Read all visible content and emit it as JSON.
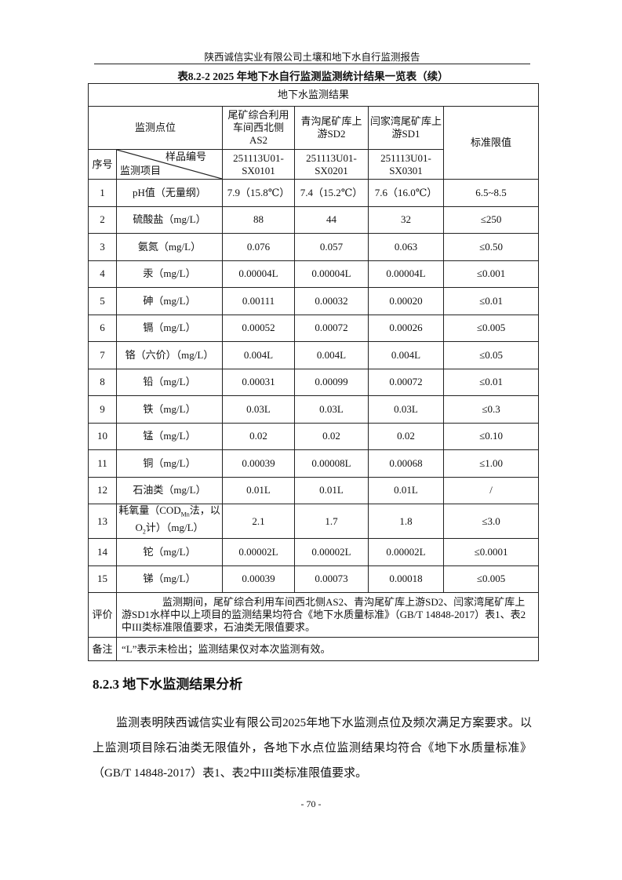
{
  "header": {
    "title": "陕西诚信实业有限公司土壤和地下水自行监测报告"
  },
  "caption": "表8.2-2    2025 年地下水自行监测监测统计结果一览表（续）",
  "table": {
    "section_title": "地下水监测结果",
    "point_label": "监测点位",
    "stations": [
      "尾矿综合利用车间西北侧AS2",
      "青沟尾矿库上游SD2",
      "闫家湾尾矿库上游SD1"
    ],
    "standard_label": "标准限值",
    "seq_label": "序号",
    "sample_label": "样品编号",
    "item_label": "监测项目",
    "sample_ids": [
      "251113U01-SX0101",
      "251113U01-SX0201",
      "251113U01-SX0301"
    ],
    "rows": [
      {
        "no": "1",
        "item": "pH值（无量纲）",
        "v": [
          "7.9（15.8℃）",
          "7.4（15.2℃）",
          "7.6（16.0℃）"
        ],
        "std": "6.5~8.5"
      },
      {
        "no": "2",
        "item": "硫酸盐（mg/L）",
        "v": [
          "88",
          "44",
          "32"
        ],
        "std": "≤250"
      },
      {
        "no": "3",
        "item": "氨氮（mg/L）",
        "v": [
          "0.076",
          "0.057",
          "0.063"
        ],
        "std": "≤0.50"
      },
      {
        "no": "4",
        "item": "汞（mg/L）",
        "v": [
          "0.00004L",
          "0.00004L",
          "0.00004L"
        ],
        "std": "≤0.001"
      },
      {
        "no": "5",
        "item": "砷（mg/L）",
        "v": [
          "0.00111",
          "0.00032",
          "0.00020"
        ],
        "std": "≤0.01"
      },
      {
        "no": "6",
        "item": "镉（mg/L）",
        "v": [
          "0.00052",
          "0.00072",
          "0.00026"
        ],
        "std": "≤0.005"
      },
      {
        "no": "7",
        "item": "铬（六价）（mg/L）",
        "v": [
          "0.004L",
          "0.004L",
          "0.004L"
        ],
        "std": "≤0.05"
      },
      {
        "no": "8",
        "item": "铅（mg/L）",
        "v": [
          "0.00031",
          "0.00099",
          "0.00072"
        ],
        "std": "≤0.01"
      },
      {
        "no": "9",
        "item": "铁（mg/L）",
        "v": [
          "0.03L",
          "0.03L",
          "0.03L"
        ],
        "std": "≤0.3"
      },
      {
        "no": "10",
        "item": "锰（mg/L）",
        "v": [
          "0.02",
          "0.02",
          "0.02"
        ],
        "std": "≤0.10"
      },
      {
        "no": "11",
        "item": "铜（mg/L）",
        "v": [
          "0.00039",
          "0.00008L",
          "0.00068"
        ],
        "std": "≤1.00"
      },
      {
        "no": "12",
        "item": "石油类（mg/L）",
        "v": [
          "0.01L",
          "0.01L",
          "0.01L"
        ],
        "std": "/"
      },
      {
        "no": "13",
        "item": "耗氧量（CODMn法，以O2计）（mg/L）",
        "v": [
          "2.1",
          "1.7",
          "1.8"
        ],
        "std": "≤3.0"
      },
      {
        "no": "14",
        "item": "铊（mg/L）",
        "v": [
          "0.00002L",
          "0.00002L",
          "0.00002L"
        ],
        "std": "≤0.0001"
      },
      {
        "no": "15",
        "item": "锑（mg/L）",
        "v": [
          "0.00039",
          "0.00073",
          "0.00018"
        ],
        "std": "≤0.005"
      }
    ],
    "eval_label": "评价",
    "eval_text": "监测期间，尾矿综合利用车间西北侧AS2、青沟尾矿库上游SD2、闫家湾尾矿库上游SD1水样中以上项目的监测结果均符合《地下水质量标准》（GB/T 14848-2017）表1、表2中III类标准限值要求，石油类无限值要求。",
    "note_label": "备注",
    "note_text": "“L”表示未检出；监测结果仅对本次监测有效。"
  },
  "section": {
    "heading": "8.2.3 地下水监测结果分析",
    "paragraph": "监测表明陕西诚信实业有限公司2025年地下水监测点位及频次满足方案要求。以上监测项目除石油类无限值外，各地下水点位监测结果均符合《地下水质量标准》（GB/T 14848-2017）表1、表2中III类标准限值要求。"
  },
  "page_number": "- 70 -"
}
